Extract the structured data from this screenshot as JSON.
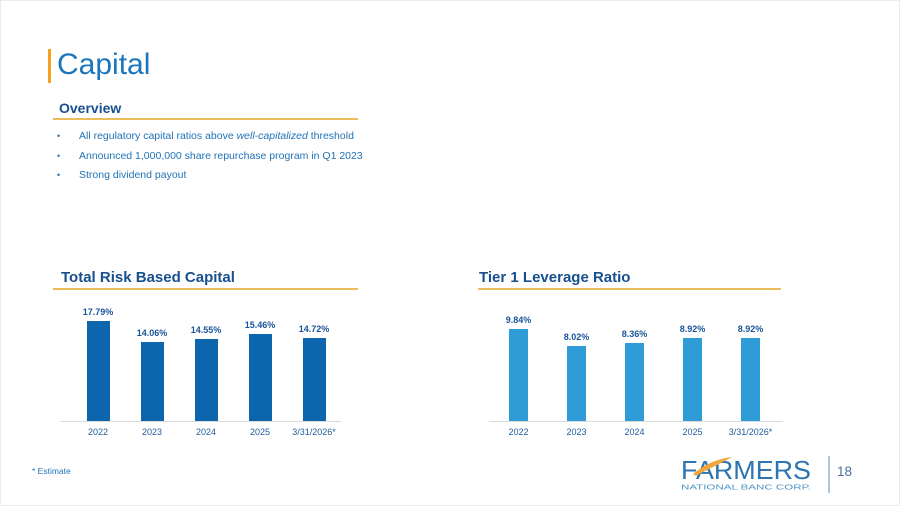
{
  "header": {
    "title": "Capital"
  },
  "overview": {
    "heading": "Overview",
    "bullets": [
      {
        "text_before": "All regulatory capital ratios above ",
        "text_italic": "well-capitalized",
        "text_after": " threshold"
      },
      {
        "text_before": "Announced 1,000,000 share repurchase program in Q1 2023",
        "text_italic": "",
        "text_after": ""
      },
      {
        "text_before": "Strong dividend payout",
        "text_italic": "",
        "text_after": ""
      }
    ]
  },
  "chart_data": [
    {
      "type": "bar",
      "title": "Total Risk Based Capital",
      "categories": [
        "2022",
        "2023",
        "2024",
        "2025",
        "3/31/2026*"
      ],
      "values": [
        17.79,
        14.06,
        14.55,
        15.46,
        14.72
      ],
      "value_labels": [
        "17.79%",
        "14.06%",
        "14.55%",
        "15.46%",
        "14.72%"
      ],
      "bar_color": "#0D66AD",
      "xlabel": "",
      "ylabel": "",
      "ylim": [
        0,
        18
      ],
      "grid": false,
      "legend": false
    },
    {
      "type": "bar",
      "title": "Tier 1 Leverage Ratio",
      "categories": [
        "2022",
        "2023",
        "2024",
        "2025",
        "3/31/2026*"
      ],
      "values": [
        9.84,
        8.02,
        8.36,
        8.92,
        8.92
      ],
      "value_labels": [
        "9.84%",
        "8.02%",
        "8.36%",
        "8.92%",
        "8.92%"
      ],
      "bar_color": "#2F9CD8",
      "xlabel": "",
      "ylabel": "",
      "ylim": [
        0,
        10
      ],
      "grid": false,
      "legend": false
    }
  ],
  "footer": {
    "footnote": "* Estimate",
    "logo": {
      "brand": "FARMERS",
      "tagline": "NATIONAL BANC CORP."
    },
    "page_number": "18"
  },
  "colors": {
    "accent_orange": "#F7A123",
    "accent_gold": "#EBBD59",
    "title_blue": "#1C76BC",
    "heading_navy": "#17508D",
    "body_blue": "#2273B7",
    "bar_dark_blue": "#0D66AD",
    "bar_light_blue": "#2F9CD8",
    "axis_gray": "#DADADA",
    "logo_blue": "#2E74B0",
    "logo_light_blue": "#4E94C4",
    "logo_gold": "#F0A63C"
  }
}
